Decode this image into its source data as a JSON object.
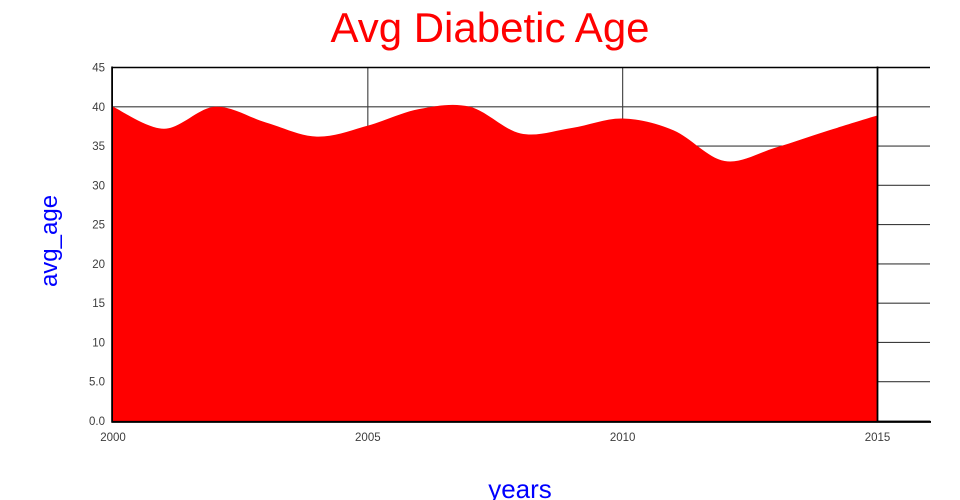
{
  "chart_data": {
    "type": "area",
    "title": "Avg Diabetic Age",
    "title_color": "#ff0000",
    "xlabel": "years",
    "ylabel": "avg_age",
    "axis_label_color": "#0000ff",
    "area_color": "#ff0000",
    "grid_color": "#3c3c3c",
    "frame_color": "#000000",
    "tick_label_color": "#3d3d3d",
    "x": [
      2000,
      2001,
      2002,
      2003,
      2004,
      2005,
      2006,
      2007,
      2008,
      2009,
      2010,
      2011,
      2012,
      2013,
      2014,
      2015
    ],
    "values": [
      40.0,
      37.2,
      40.0,
      38.0,
      36.2,
      37.6,
      39.7,
      40.0,
      36.6,
      37.3,
      38.5,
      37.0,
      33.1,
      34.8,
      36.9,
      38.9
    ],
    "xlim": [
      2000,
      2015
    ],
    "ylim": [
      0,
      45
    ],
    "x_ticks": [
      {
        "value": 2000,
        "label": "2000"
      },
      {
        "value": 2005,
        "label": "2005"
      },
      {
        "value": 2010,
        "label": "2010"
      },
      {
        "value": 2015,
        "label": "2015"
      }
    ],
    "y_ticks": [
      {
        "value": 0,
        "label": "0.0"
      },
      {
        "value": 5,
        "label": "5.0"
      },
      {
        "value": 10,
        "label": "10"
      },
      {
        "value": 15,
        "label": "15"
      },
      {
        "value": 20,
        "label": "20"
      },
      {
        "value": 25,
        "label": "25"
      },
      {
        "value": 30,
        "label": "30"
      },
      {
        "value": 35,
        "label": "35"
      },
      {
        "value": 40,
        "label": "40"
      },
      {
        "value": 45,
        "label": "45"
      }
    ],
    "grid": true,
    "legend": false,
    "curve": "smooth-spline"
  }
}
